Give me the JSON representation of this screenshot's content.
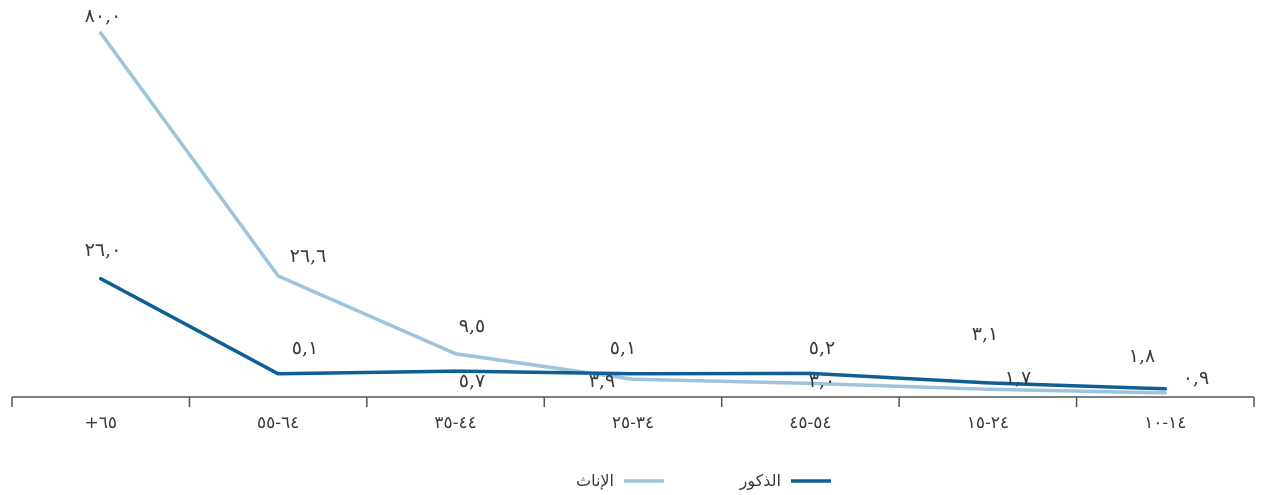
{
  "chart_data": {
    "type": "line",
    "title": "",
    "xlabel": "",
    "ylabel": "",
    "grid": false,
    "ylim": [
      0,
      80
    ],
    "legend_position": "bottom-center",
    "categories": [
      "+٦٥",
      "٦٤-٥٥",
      "٤٤-٣٥",
      "٣٤-٢٥",
      "٥٤-٤٥",
      "٢٤-١٥",
      "١٤-١٠"
    ],
    "series": [
      {
        "name": "الإناث",
        "color": "#9dc3dd",
        "values": [
          80.0,
          26.6,
          9.5,
          3.9,
          3.0,
          1.7,
          0.9
        ],
        "labels": [
          "٨٠,٠",
          "٢٦,٦",
          "٩,٥",
          "٣,٩",
          "٣,٠",
          "١,٧",
          "٠,٩"
        ]
      },
      {
        "name": "الذكور",
        "color": "#0f5e95",
        "values": [
          26.0,
          5.1,
          5.7,
          5.1,
          5.2,
          3.1,
          1.8
        ],
        "labels": [
          "٢٦,٠",
          "٥,١",
          "٥,٧",
          "٥,١",
          "٥,٢",
          "٣,١",
          "١,٨"
        ]
      }
    ]
  }
}
